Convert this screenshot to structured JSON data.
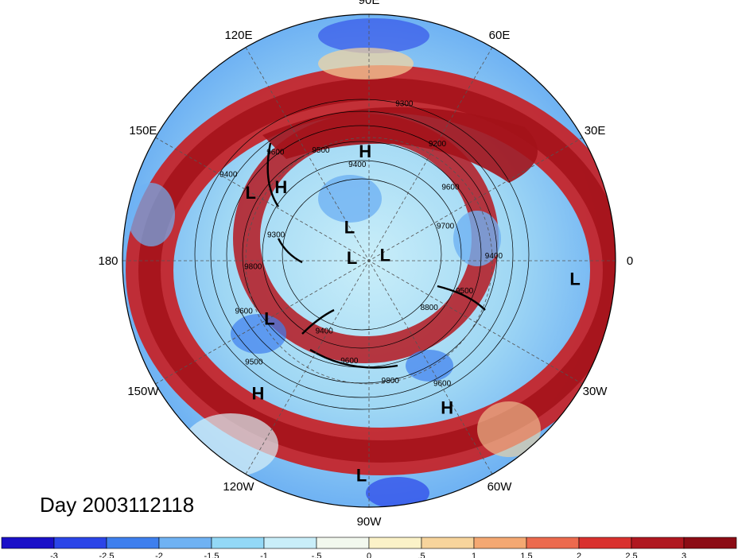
{
  "map": {
    "meridian_labels": [
      {
        "text": "90E",
        "lon": 90
      },
      {
        "text": "60E",
        "lon": 60
      },
      {
        "text": "30E",
        "lon": 30
      },
      {
        "text": "0",
        "lon": 0
      },
      {
        "text": "30W",
        "lon": -30
      },
      {
        "text": "60W",
        "lon": -60
      },
      {
        "text": "90W",
        "lon": -90
      },
      {
        "text": "120W",
        "lon": -120
      },
      {
        "text": "150W",
        "lon": -150
      },
      {
        "text": "180",
        "lon": 180
      },
      {
        "text": "150E",
        "lon": 150
      },
      {
        "text": "120E",
        "lon": 120
      }
    ],
    "pressure_centers": [
      {
        "label": "H",
        "lon": 92,
        "lat": 42
      },
      {
        "label": "L",
        "lon": 150,
        "lat": 32
      },
      {
        "label": "H",
        "lon": 140,
        "lat": 40
      },
      {
        "label": "L",
        "lon": 120,
        "lat": 72
      },
      {
        "label": "L",
        "lon": 20,
        "lat": 82
      },
      {
        "label": "L",
        "lon": 170,
        "lat": 82
      },
      {
        "label": "L",
        "lon": -5,
        "lat": 10
      },
      {
        "label": "L",
        "lon": -150,
        "lat": 40
      },
      {
        "label": "H",
        "lon": -130,
        "lat": 20
      },
      {
        "label": "H",
        "lon": -62,
        "lat": 22
      },
      {
        "label": "L",
        "lon": -92,
        "lat": 8
      }
    ],
    "contour_labels": [
      "9700",
      "9600",
      "9200",
      "9300",
      "9400",
      "9500",
      "9600",
      "9400",
      "9300",
      "9800",
      "9600",
      "9500",
      "9400",
      "9600",
      "9800",
      "9600",
      "8800",
      "9500",
      "9400"
    ]
  },
  "colorbar": {
    "colors": [
      "#1a10c8",
      "#2b45e8",
      "#3e7fee",
      "#6fb2f3",
      "#93d8f6",
      "#c9eef9",
      "#f2f8ee",
      "#fbf2c8",
      "#f7d49c",
      "#f4a872",
      "#ec6a4e",
      "#d9312e",
      "#b01820",
      "#8c0c15"
    ],
    "ticks": [
      "-3",
      "-2.5",
      "-2",
      "-1.5",
      "-1",
      "-.5",
      "0",
      ".5",
      "1",
      "1.5",
      "2",
      "2.5",
      "3"
    ]
  },
  "caption": "Day 2003112118"
}
